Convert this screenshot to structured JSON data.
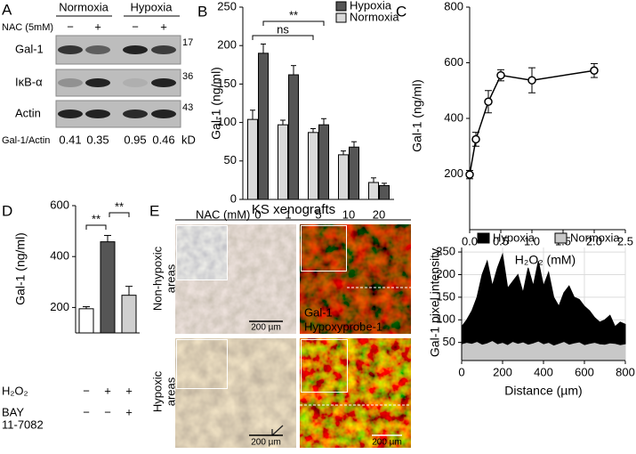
{
  "panel_a": {
    "label": "A",
    "groups": [
      "Normoxia",
      "Hypoxia"
    ],
    "treatment": "NAC (5mM)",
    "signs": [
      "−",
      "+",
      "−",
      "+"
    ],
    "rows": [
      "Gal-1",
      "IκB-α",
      "Actin"
    ],
    "markers": [
      "17",
      "36",
      "43"
    ],
    "marker_unit": "kD",
    "ratio_label": "Gal-1/Actin",
    "ratios": [
      "0.41",
      "0.35",
      "0.95",
      "0.46"
    ]
  },
  "panel_e": {
    "label": "E",
    "title": "KS xenografts",
    "rows": [
      [
        "Non-hypoxic",
        "areas"
      ],
      [
        "Hypoxic",
        "areas"
      ]
    ],
    "stains": [
      "Gal-1",
      "Hypoxyprobe-1"
    ],
    "scale_bars": [
      "200 µm",
      "200 µm",
      "200 µm"
    ]
  },
  "chart_data": [
    {
      "type": "bar",
      "panel": "B",
      "y_label": "Gal-1 (ng/ml)",
      "x_label": "NAC (mM)",
      "categories": [
        "0",
        "1",
        "5",
        "10",
        "20"
      ],
      "series": [
        {
          "name": "Normoxia",
          "color": "#d9d9d9",
          "values": [
            104,
            97,
            87,
            58,
            22
          ],
          "errors": [
            12,
            6,
            5,
            5,
            6
          ]
        },
        {
          "name": "Hypoxia",
          "color": "#555555",
          "values": [
            190,
            162,
            97,
            68,
            18
          ],
          "errors": [
            12,
            12,
            8,
            7,
            3
          ]
        }
      ],
      "ylim": [
        0,
        250
      ],
      "yticks": [
        0,
        50,
        100,
        150,
        200,
        250
      ],
      "annotations": [
        "ns",
        "**"
      ]
    },
    {
      "type": "line",
      "panel": "C",
      "y_label": "Gal-1 (ng/ml)",
      "x_label": "H₂O₂ (mM)",
      "x": [
        0,
        0.1,
        0.3,
        0.5,
        1,
        2
      ],
      "values": [
        198,
        325,
        460,
        555,
        537,
        572
      ],
      "errors": [
        15,
        25,
        40,
        20,
        45,
        25
      ],
      "color": "#000000",
      "xlim": [
        0,
        2.5
      ],
      "xticks": [
        {
          "value": 0,
          "label": "0.0"
        },
        0.5,
        {
          "value": 1,
          "label": "1.0"
        },
        1.5,
        {
          "value": 2,
          "label": "2.0"
        },
        2.5
      ],
      "ylim": [
        0,
        800
      ],
      "yticks": [
        200,
        400,
        600,
        800
      ]
    },
    {
      "type": "bar",
      "panel": "D",
      "y_label": "Gal-1 (ng/ml)",
      "values": [
        195,
        458,
        248
      ],
      "errors": [
        8,
        25,
        35
      ],
      "colors": [
        "#ffffff",
        "#555555",
        "#d0d0d0"
      ],
      "treatments": [
        {
          "label": [
            "H₂O₂"
          ],
          "signs": [
            "−",
            "+",
            "+"
          ]
        },
        {
          "label": [
            "BAY",
            "11-7082"
          ],
          "signs": [
            "−",
            "−",
            "+"
          ]
        }
      ],
      "ylim": [
        100,
        600
      ],
      "yticks": [
        200,
        400,
        600
      ],
      "annotations": [
        "**",
        "**"
      ]
    },
    {
      "type": "area",
      "y_label": "Gal-1 pixel intensity",
      "x_label": "Distance (µm)",
      "x": [
        0,
        25,
        50,
        75,
        100,
        125,
        150,
        175,
        200,
        225,
        250,
        275,
        300,
        325,
        350,
        375,
        400,
        425,
        450,
        475,
        500,
        525,
        550,
        575,
        600,
        625,
        650,
        675,
        700,
        725,
        750,
        775,
        800
      ],
      "series": [
        {
          "name": "Hypoxia",
          "color": "#000000",
          "values": [
            85,
            100,
            120,
            150,
            200,
            230,
            175,
            215,
            245,
            170,
            185,
            200,
            160,
            215,
            175,
            230,
            175,
            205,
            150,
            130,
            160,
            175,
            150,
            145,
            130,
            120,
            105,
            95,
            100,
            110,
            85,
            95,
            90
          ]
        },
        {
          "name": "Normoxia",
          "color": "#c8c8c8",
          "values": [
            45,
            48,
            46,
            50,
            44,
            47,
            52,
            45,
            48,
            43,
            50,
            46,
            49,
            44,
            47,
            51,
            45,
            48,
            42,
            46,
            50,
            44,
            47,
            49,
            43,
            46,
            48,
            45,
            44,
            47,
            46,
            43,
            45
          ]
        }
      ],
      "xlim": [
        0,
        800
      ],
      "xticks": [
        0,
        200,
        400,
        600,
        800
      ],
      "ylim": [
        10,
        260
      ],
      "yticks": [
        50,
        100,
        150,
        200,
        250
      ],
      "grid": true
    }
  ]
}
